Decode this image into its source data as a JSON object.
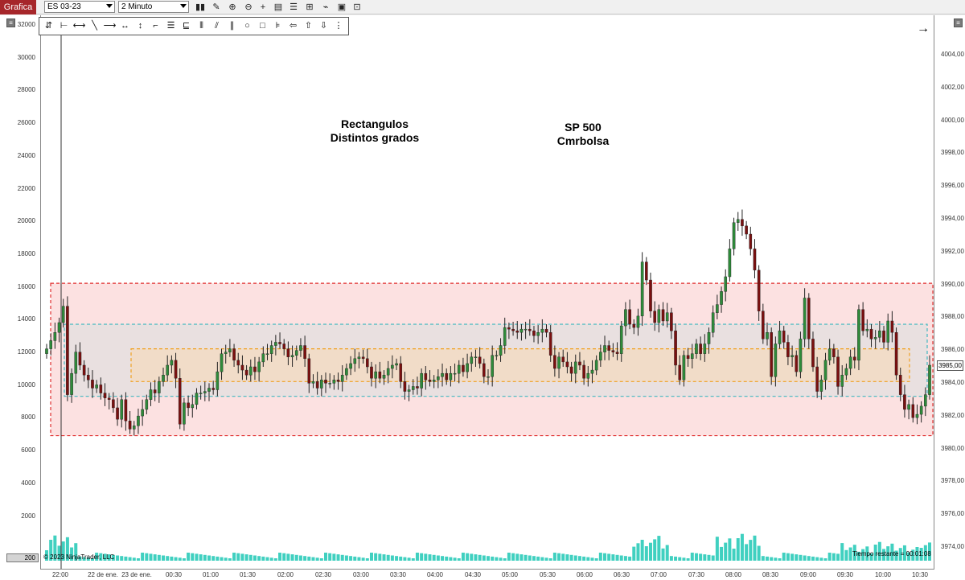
{
  "toolbar": {
    "tab_label": "Grafica",
    "instrument": "ES 03-23",
    "interval": "2 Minuto"
  },
  "annotations": {
    "left_line1": "Rectangulos",
    "left_line2": "Distintos grados",
    "right_line1": "SP 500",
    "right_line2": "Cmrbolsa"
  },
  "left_axis_ticks": [
    "32000",
    "30000",
    "28000",
    "26000",
    "24000",
    "22000",
    "20000",
    "18000",
    "16000",
    "14000",
    "12000",
    "10000",
    "8000",
    "6000",
    "4000",
    "2000"
  ],
  "right_axis_ticks": [
    "4004,00",
    "4002,00",
    "4000,00",
    "3998,00",
    "3996,00",
    "3994,00",
    "3992,00",
    "3990,00",
    "3988,00",
    "3986,00",
    "3984,00",
    "3982,00",
    "3980,00",
    "3978,00",
    "3976,00",
    "3974,00"
  ],
  "x_axis_ticks": [
    "22:00",
    "22 de ene.",
    "23 de ene.",
    "00:30",
    "01:00",
    "01:30",
    "02:00",
    "02:30",
    "03:00",
    "03:30",
    "04:00",
    "04:30",
    "05:00",
    "05:30",
    "06:00",
    "06:30",
    "07:00",
    "07:30",
    "08:00",
    "08:30",
    "09:00",
    "09:30",
    "10:00",
    "10:30"
  ],
  "current_price": "3985,00",
  "volume_box": "200",
  "copyright": "© 2023 NinjaTrader, LLC",
  "time_remaining": "Tiempo restante = 00:01:08",
  "colors": {
    "up_candle": "#2e8b3a",
    "down_candle": "#7a1010",
    "volume": "#40d0c0",
    "outer_rect": "#e03030",
    "mid_rect": "#40b8c0",
    "inner_rect": "#f0a020"
  },
  "chart_data": {
    "type": "candlestick",
    "price_range": [
      3973,
      4005
    ],
    "volume_range": [
      0,
      33000
    ],
    "rectangles": [
      {
        "top": 3990.0,
        "bottom": 3980.7
      },
      {
        "top": 3987.5,
        "bottom": 3983.1
      },
      {
        "top": 3986.0,
        "bottom": 3984.0
      }
    ],
    "closes": [
      3986.0,
      3986.5,
      3987.0,
      3987.6,
      3988.6,
      3983.2,
      3984.5,
      3985.8,
      3985.0,
      3984.4,
      3984.1,
      3983.6,
      3983.8,
      3983.3,
      3983.0,
      3982.9,
      3982.4,
      3981.7,
      3982.9,
      3981.6,
      3981.1,
      3981.3,
      3981.9,
      3982.3,
      3982.9,
      3983.5,
      3983.3,
      3984.0,
      3984.4,
      3985.0,
      3985.3,
      3984.2,
      3981.4,
      3982.7,
      3982.4,
      3982.6,
      3983.3,
      3983.3,
      3983.4,
      3983.6,
      3983.5,
      3984.6,
      3985.7,
      3985.8,
      3986.0,
      3985.3,
      3985.0,
      3984.7,
      3984.4,
      3984.9,
      3984.6,
      3985.2,
      3985.7,
      3985.7,
      3986.2,
      3986.4,
      3986.3,
      3986.0,
      3985.5,
      3985.6,
      3985.9,
      3986.2,
      3985.4,
      3983.9,
      3984.0,
      3983.6,
      3984.1,
      3983.9,
      3983.9,
      3984.1,
      3984.0,
      3984.4,
      3984.8,
      3985.1,
      3985.4,
      3985.5,
      3985.4,
      3984.9,
      3984.2,
      3984.6,
      3984.2,
      3984.4,
      3984.8,
      3985.0,
      3985.1,
      3984.0,
      3983.4,
      3983.5,
      3983.7,
      3983.6,
      3984.5,
      3984.1,
      3984.0,
      3984.1,
      3984.3,
      3984.5,
      3984.1,
      3984.5,
      3984.5,
      3985.0,
      3984.6,
      3985.1,
      3985.5,
      3985.5,
      3985.1,
      3984.3,
      3984.3,
      3985.6,
      3985.6,
      3986.2,
      3987.3,
      3987.2,
      3987.1,
      3987.0,
      3987.2,
      3987.2,
      3987.1,
      3986.8,
      3987.0,
      3987.2,
      3987.0,
      3985.6,
      3984.8,
      3985.5,
      3985.2,
      3984.9,
      3984.5,
      3985.2,
      3985.0,
      3984.2,
      3984.5,
      3984.7,
      3985.3,
      3985.8,
      3986.2,
      3985.9,
      3985.8,
      3985.7,
      3987.4,
      3988.4,
      3987.5,
      3987.3,
      3988.0,
      3991.3,
      3990.2,
      3988.3,
      3987.6,
      3988.4,
      3987.7,
      3988.2,
      3987.1,
      3985.0,
      3984.1,
      3985.6,
      3985.4,
      3985.7,
      3986.3,
      3985.7,
      3986.3,
      3987.0,
      3988.2,
      3988.7,
      3989.5,
      3990.4,
      3992.1,
      3993.7,
      3993.9,
      3993.5,
      3993.0,
      3992.1,
      3990.8,
      3988.3,
      3986.6,
      3987.0,
      3984.3,
      3986.3,
      3987.1,
      3986.4,
      3985.5,
      3985.6,
      3984.6,
      3986.6,
      3989.1,
      3986.6,
      3984.9,
      3983.4,
      3984.1,
      3985.3,
      3986.0,
      3985.5,
      3983.7,
      3984.4,
      3984.8,
      3985.5,
      3985.3,
      3988.4,
      3987.1,
      3987.2,
      3986.6,
      3986.7,
      3987.1,
      3986.4,
      3987.7,
      3987.0,
      3984.4,
      3983.2,
      3982.3,
      3982.6,
      3981.8,
      3982.0,
      3982.5,
      3983.2,
      3985.0
    ]
  }
}
